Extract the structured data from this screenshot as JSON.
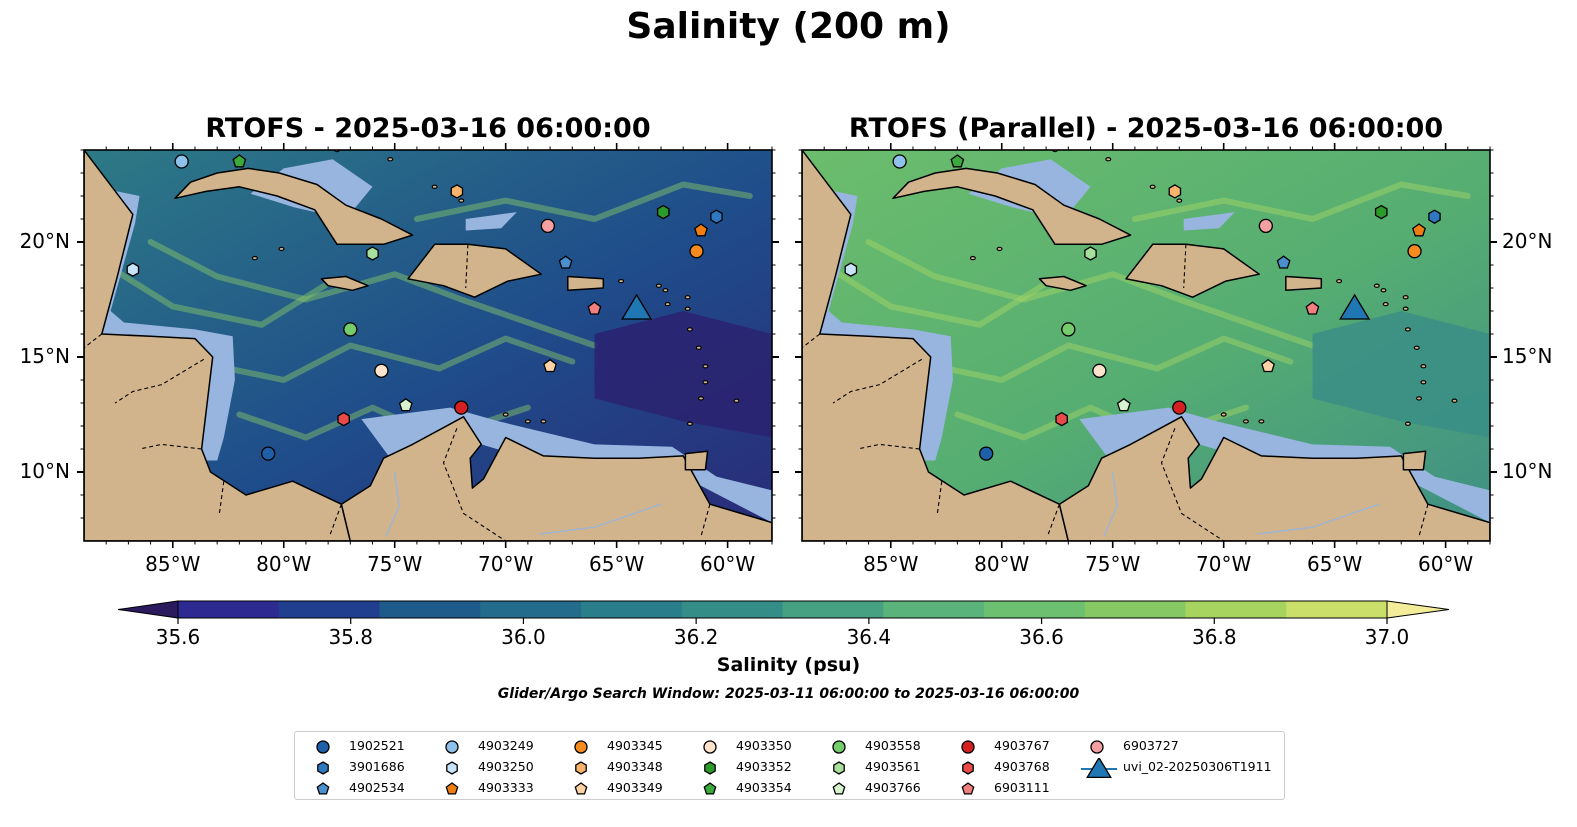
{
  "title": "Salinity (200 m)",
  "panels": [
    {
      "title": "RTOFS - 2025-03-16 06:00:00"
    },
    {
      "title": "RTOFS (Parallel) - 2025-03-16 06:00:00"
    }
  ],
  "axes": {
    "lon_ticks": [
      "85°W",
      "80°W",
      "75°W",
      "70°W",
      "65°W",
      "60°W"
    ],
    "lat_ticks": [
      "20°N",
      "15°N",
      "10°N"
    ],
    "lon_range": [
      -89,
      -58
    ],
    "lat_range": [
      7,
      24
    ]
  },
  "colorbar": {
    "label": "Salinity (psu)",
    "ticks": [
      "35.6",
      "35.8",
      "36.0",
      "36.2",
      "36.4",
      "36.6",
      "36.8",
      "37.0"
    ],
    "range": [
      35.6,
      37.0
    ],
    "colors": [
      "#2c1a5e",
      "#2d2a92",
      "#213f8f",
      "#1e5a8a",
      "#236c8b",
      "#2a7d8a",
      "#358d87",
      "#46a182",
      "#5ab37a",
      "#6dc06f",
      "#86c864",
      "#a6d45e",
      "#c9df6a",
      "#f3ed9a"
    ]
  },
  "colors": {
    "land": "#d2b48c",
    "shelf": "#97b5df",
    "left_background": "#2b7a86",
    "right_background": "#62b56c"
  },
  "search_window": "Glider/Argo Search Window: 2025-03-11 06:00:00 to 2025-03-16 06:00:00",
  "legend": [
    {
      "id": "1902521",
      "marker": "circle",
      "color": "#1f5fa8"
    },
    {
      "id": "3901686",
      "marker": "hexagon",
      "color": "#2f78c2"
    },
    {
      "id": "4902534",
      "marker": "pentagon",
      "color": "#4a90cf"
    },
    {
      "id": "4903249",
      "marker": "circle",
      "color": "#8fc2ea"
    },
    {
      "id": "4903250",
      "marker": "hexagon",
      "color": "#c8e3f8"
    },
    {
      "id": "4903333",
      "marker": "pentagon",
      "color": "#f07d10"
    },
    {
      "id": "4903345",
      "marker": "circle",
      "color": "#f58a1f"
    },
    {
      "id": "4903348",
      "marker": "hexagon",
      "color": "#fab36a"
    },
    {
      "id": "4903349",
      "marker": "pentagon",
      "color": "#fdd3a6"
    },
    {
      "id": "4903350",
      "marker": "circle",
      "color": "#fde2cc"
    },
    {
      "id": "4903352",
      "marker": "hexagon",
      "color": "#2a9a2a"
    },
    {
      "id": "4903354",
      "marker": "pentagon",
      "color": "#3aaa3a"
    },
    {
      "id": "4903558",
      "marker": "circle",
      "color": "#74cc6a"
    },
    {
      "id": "4903561",
      "marker": "hexagon",
      "color": "#a6e09c"
    },
    {
      "id": "4903766",
      "marker": "pentagon",
      "color": "#d6f2cf"
    },
    {
      "id": "4903767",
      "marker": "circle",
      "color": "#d42020"
    },
    {
      "id": "4903768",
      "marker": "hexagon",
      "color": "#e84a4a"
    },
    {
      "id": "6903111",
      "marker": "pentagon",
      "color": "#f08080"
    },
    {
      "id": "6903727",
      "marker": "circle",
      "color": "#f4a0a0"
    },
    {
      "id": "uvi_02-20250306T1911",
      "marker": "triangle",
      "color": "#1f77b4"
    }
  ],
  "floats": [
    {
      "id": "1902521",
      "lon": -80.7,
      "lat": 10.8
    },
    {
      "id": "3901686",
      "lon": -60.5,
      "lat": 21.1
    },
    {
      "id": "4902534",
      "lon": -67.3,
      "lat": 19.1
    },
    {
      "id": "4903249",
      "lon": -84.6,
      "lat": 23.5
    },
    {
      "id": "4903250",
      "lon": -86.8,
      "lat": 18.8
    },
    {
      "id": "4903333",
      "lon": -61.2,
      "lat": 20.5
    },
    {
      "id": "4903345",
      "lon": -61.4,
      "lat": 19.6
    },
    {
      "id": "4903348",
      "lon": -72.2,
      "lat": 22.2
    },
    {
      "id": "4903349",
      "lon": -68.0,
      "lat": 14.6
    },
    {
      "id": "4903350",
      "lon": -75.6,
      "lat": 14.4
    },
    {
      "id": "4903352",
      "lon": -62.9,
      "lat": 21.3
    },
    {
      "id": "4903354",
      "lon": -82.0,
      "lat": 23.5
    },
    {
      "id": "4903558",
      "lon": -77.0,
      "lat": 16.2
    },
    {
      "id": "4903561",
      "lon": -76.0,
      "lat": 19.5
    },
    {
      "id": "4903766",
      "lon": -74.5,
      "lat": 12.9
    },
    {
      "id": "4903767",
      "lon": -72.0,
      "lat": 12.8
    },
    {
      "id": "4903768",
      "lon": -77.3,
      "lat": 12.3
    },
    {
      "id": "6903111",
      "lon": -66.0,
      "lat": 17.1
    },
    {
      "id": "6903727",
      "lon": -68.1,
      "lat": 20.7
    },
    {
      "id": "uvi_02-20250306T1911",
      "lon": -64.1,
      "lat": 17.1
    }
  ]
}
